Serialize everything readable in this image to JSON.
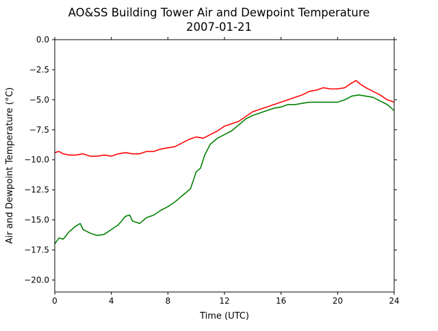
{
  "chart_data": {
    "type": "line",
    "title": "AO&SS Building Tower Air and Dewpoint Temperature",
    "subtitle": "2007-01-21",
    "xlabel": "Time (UTC)",
    "ylabel": "Air and Dewpoint Temperature (°C)",
    "xlim": [
      0,
      24
    ],
    "ylim": [
      -21,
      0
    ],
    "xticks": [
      0,
      4,
      8,
      12,
      16,
      20,
      24
    ],
    "yticks": [
      0.0,
      -2.5,
      -5.0,
      -7.5,
      -10.0,
      -12.5,
      -15.0,
      -17.5,
      -20.0
    ],
    "ytick_labels": [
      "0.0",
      "−2.5",
      "−5.0",
      "−7.5",
      "−10.0",
      "−12.5",
      "−15.0",
      "−17.5",
      "−20.0"
    ],
    "grid": false,
    "legend": "none",
    "series": [
      {
        "color": "#ff0000",
        "x": [
          0,
          0.3,
          0.6,
          1,
          1.5,
          2,
          2.5,
          3,
          3.5,
          4,
          4.5,
          5,
          5.5,
          6,
          6.5,
          7,
          7.5,
          8,
          8.5,
          9,
          9.5,
          10,
          10.5,
          11,
          11.5,
          12,
          12.5,
          13,
          13.5,
          14,
          14.5,
          15,
          15.5,
          16,
          16.5,
          17,
          17.5,
          18,
          18.5,
          19,
          19.5,
          20,
          20.5,
          21,
          21.3,
          21.6,
          22,
          22.5,
          23,
          23.5,
          24
        ],
        "y": [
          -9.4,
          -9.3,
          -9.5,
          -9.6,
          -9.6,
          -9.5,
          -9.7,
          -9.7,
          -9.6,
          -9.7,
          -9.5,
          -9.4,
          -9.5,
          -9.5,
          -9.3,
          -9.3,
          -9.1,
          -9.0,
          -8.9,
          -8.6,
          -8.3,
          -8.1,
          -8.2,
          -7.9,
          -7.6,
          -7.2,
          -7.0,
          -6.8,
          -6.4,
          -6.0,
          -5.8,
          -5.6,
          -5.4,
          -5.2,
          -5.0,
          -4.8,
          -4.6,
          -4.3,
          -4.2,
          -4.0,
          -4.1,
          -4.1,
          -4.0,
          -3.6,
          -3.4,
          -3.7,
          -4.0,
          -4.3,
          -4.6,
          -5.0,
          -5.2
        ]
      },
      {
        "color": "#008000",
        "x": [
          0,
          0.3,
          0.6,
          1,
          1.5,
          1.8,
          2,
          2.5,
          3,
          3.5,
          4,
          4.5,
          5,
          5.3,
          5.5,
          6,
          6.5,
          7,
          7.5,
          8,
          8.5,
          9,
          9.3,
          9.6,
          10,
          10.3,
          10.6,
          11,
          11.5,
          12,
          12.5,
          13,
          13.5,
          14,
          14.5,
          15,
          15.5,
          16,
          16.5,
          17,
          17.5,
          18,
          18.5,
          19,
          19.5,
          20,
          20.5,
          21,
          21.5,
          22,
          22.5,
          23,
          23.5,
          24
        ],
        "y": [
          -17.0,
          -16.5,
          -16.6,
          -16.0,
          -15.5,
          -15.3,
          -15.8,
          -16.1,
          -16.3,
          -16.2,
          -15.8,
          -15.4,
          -14.7,
          -14.6,
          -15.1,
          -15.3,
          -14.8,
          -14.6,
          -14.2,
          -13.9,
          -13.5,
          -13.0,
          -12.7,
          -12.4,
          -11.0,
          -10.7,
          -9.6,
          -8.7,
          -8.2,
          -7.9,
          -7.6,
          -7.1,
          -6.6,
          -6.3,
          -6.1,
          -5.9,
          -5.7,
          -5.6,
          -5.4,
          -5.4,
          -5.3,
          -5.2,
          -5.2,
          -5.2,
          -5.2,
          -5.2,
          -5.0,
          -4.7,
          -4.6,
          -4.7,
          -4.8,
          -5.1,
          -5.4,
          -5.9
        ]
      }
    ]
  }
}
